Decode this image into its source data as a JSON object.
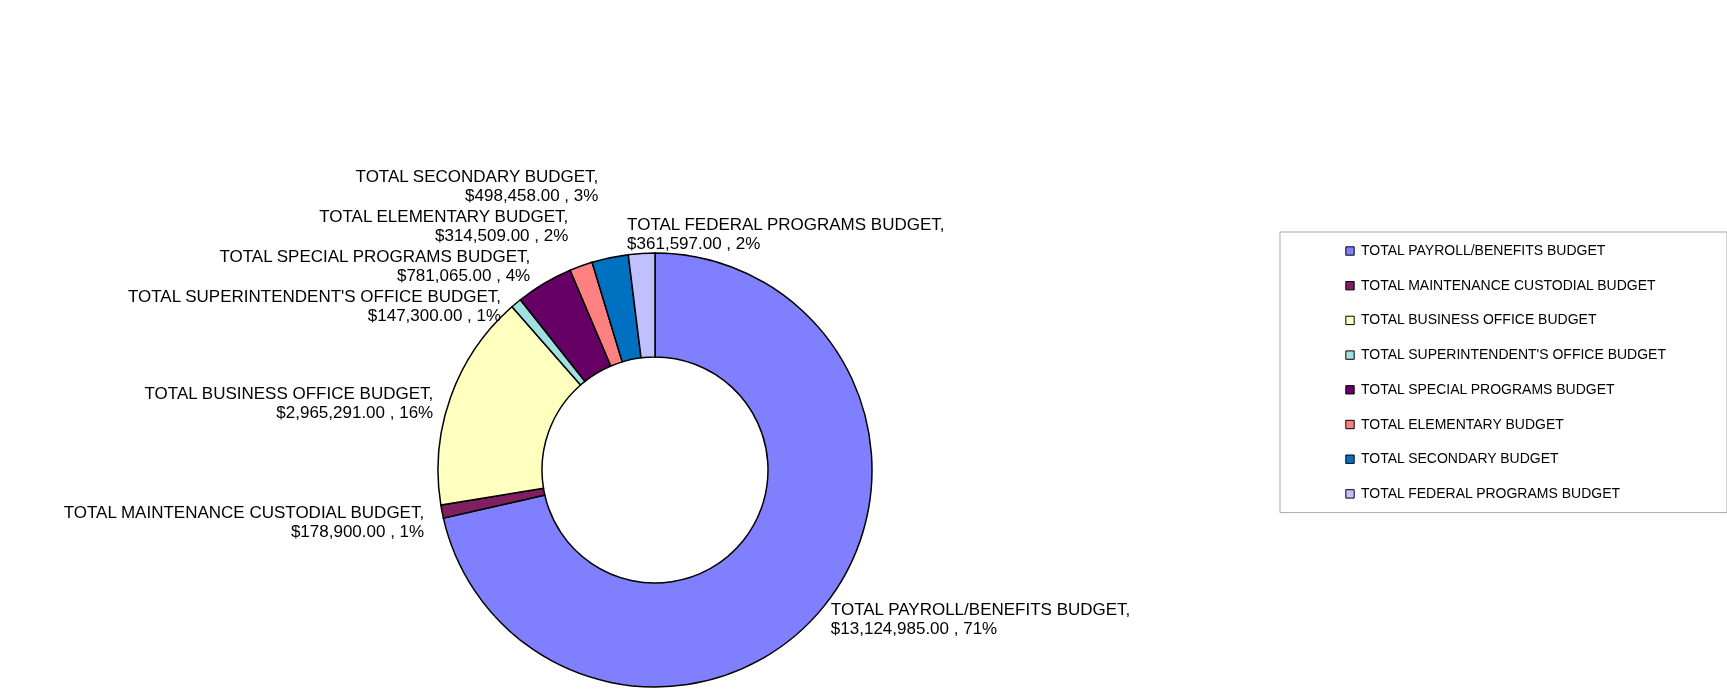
{
  "chart_data": {
    "type": "donut",
    "categories": [
      "TOTAL PAYROLL/BENEFITS BUDGET",
      "TOTAL MAINTENANCE CUSTODIAL BUDGET",
      "TOTAL BUSINESS OFFICE BUDGET",
      "TOTAL SUPERINTENDENT'S OFFICE BUDGET",
      "TOTAL SPECIAL PROGRAMS BUDGET",
      "TOTAL ELEMENTARY BUDGET",
      "TOTAL SECONDARY BUDGET",
      "TOTAL FEDERAL PROGRAMS BUDGET"
    ],
    "values": [
      13124985.0,
      178900.0,
      2965291.0,
      147300.0,
      781065.0,
      314509.0,
      498458.0,
      361597.0
    ],
    "colors": [
      "#8080ff",
      "#7f1f5f",
      "#ffffc0",
      "#a0e0e0",
      "#660066",
      "#ff8080",
      "#0070c0",
      "#c0c0ff"
    ],
    "value_labels": [
      "TOTAL PAYROLL/BENEFITS BUDGET, $13,124,985.00 , 71%",
      "TOTAL MAINTENANCE CUSTODIAL BUDGET,  $178,900.00 , 1%",
      "TOTAL BUSINESS OFFICE BUDGET, $2,965,291.00 , 16%",
      "TOTAL SUPERINTENDENT'S OFFICE BUDGET,  $147,300.00 , 1%",
      "TOTAL SPECIAL PROGRAMS BUDGET, $781,065.00 , 4%",
      "TOTAL ELEMENTARY BUDGET, $314,509.00 , 2%",
      "TOTAL SECONDARY BUDGET, $498,458.00 , 3%",
      "TOTAL FEDERAL PROGRAMS BUDGET, $361,597.00 , 2%"
    ],
    "legend": "right"
  }
}
